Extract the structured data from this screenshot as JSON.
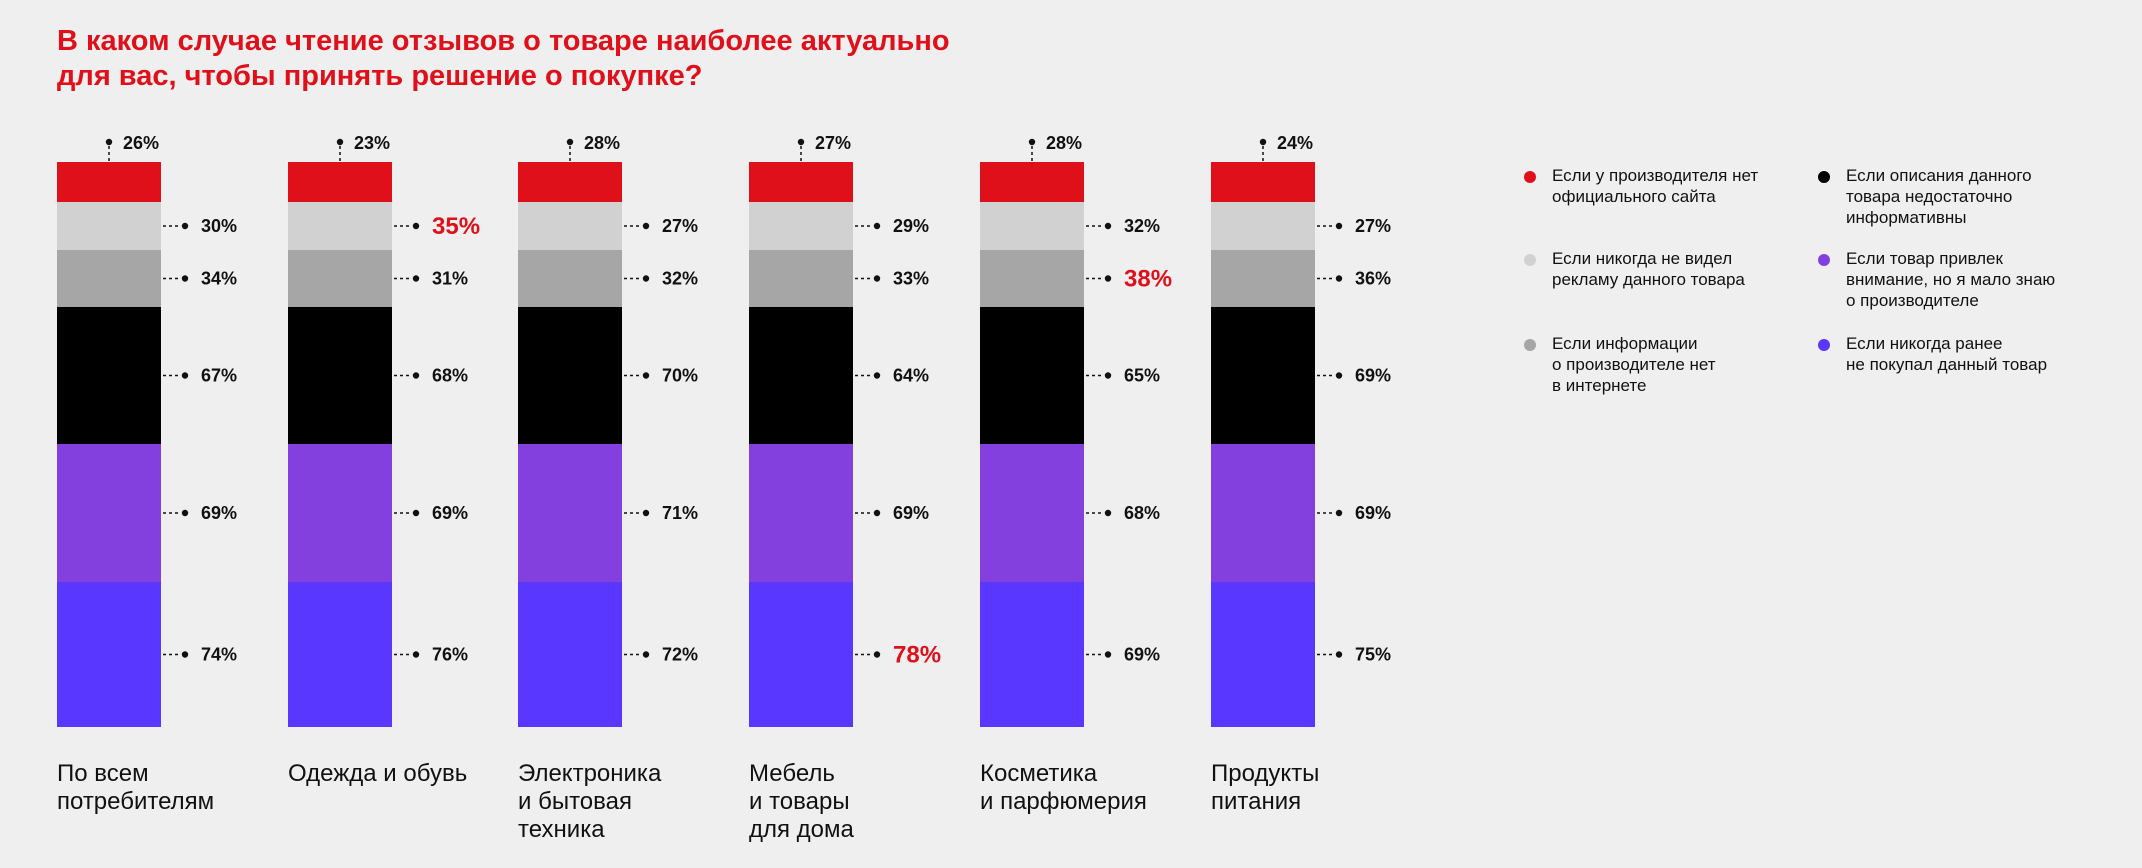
{
  "title": "В каком случае чтение отзывов о товаре наиболее актуально\nдля вас, чтобы принять решение о покупке?",
  "chart_data": {
    "type": "bar",
    "stacked": true,
    "title": "В каком случае чтение отзывов о товаре наиболее актуально для вас, чтобы принять решение о покупке?",
    "categories": [
      "По всем\nпотребителям",
      "Одежда и обувь",
      "Электроника\nи бытовая\nтехника",
      "Мебель\nи товары\nдля дома",
      "Косметика\nи парфюмерия",
      "Продукты\nпитания"
    ],
    "series": [
      {
        "name": "Если у производителя нет официального сайта",
        "color": "#e0101a",
        "values": [
          26,
          23,
          28,
          27,
          28,
          24
        ]
      },
      {
        "name": "Если никогда не видел рекламу данного товара",
        "color": "#d1d1d1",
        "values": [
          30,
          35,
          27,
          29,
          32,
          27
        ]
      },
      {
        "name": "Если информации о производителе нет в интернете",
        "color": "#a6a6a6",
        "values": [
          34,
          31,
          32,
          33,
          38,
          36
        ]
      },
      {
        "name": "Если описания данного товара недостаточно информативны",
        "color": "#000000",
        "values": [
          67,
          68,
          70,
          64,
          65,
          69
        ]
      },
      {
        "name": "Если товар привлек внимание, но я мало знаю о производителе",
        "color": "#8340df",
        "values": [
          69,
          69,
          71,
          69,
          68,
          69
        ]
      },
      {
        "name": "Если никогда ранее не покупал данный товар",
        "color": "#5a37fe",
        "values": [
          74,
          76,
          72,
          78,
          69,
          75
        ]
      }
    ],
    "highlighted": [
      {
        "category_index": 1,
        "series_index": 1
      },
      {
        "category_index": 4,
        "series_index": 2
      },
      {
        "category_index": 3,
        "series_index": 5
      }
    ],
    "highlight_color": "#e0101a",
    "value_suffix": "%",
    "legend_position": "right",
    "grid": false
  },
  "legend": {
    "items": [
      {
        "label": "Если у производителя нет\nофициального сайта",
        "color": "#e0101a"
      },
      {
        "label": "Если никогда не видел\nрекламу данного товара",
        "color": "#d1d1d1"
      },
      {
        "label": "Если информации\nо производителе нет\nв интернете",
        "color": "#a6a6a6"
      },
      {
        "label": "Если описания данного\nтовара недостаточно\nинформативны",
        "color": "#000000"
      },
      {
        "label": "Если товар привлек\nвнимание, но я мало знаю\nо производителе",
        "color": "#8340df"
      },
      {
        "label": "Если никогда ранее\nне покупал данный товар",
        "color": "#5a37fe"
      }
    ]
  }
}
